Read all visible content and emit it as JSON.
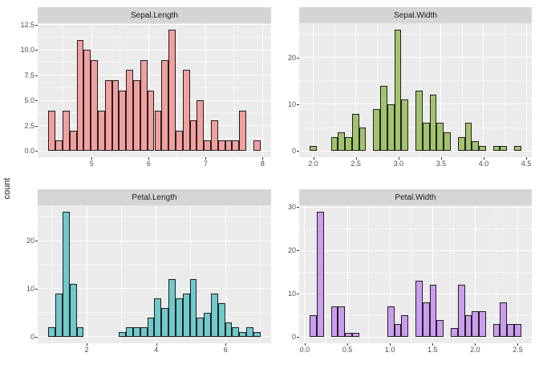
{
  "figure": {
    "ylabel": "count",
    "background": "#ffffff",
    "panel_bg": "#ebebeb",
    "strip_bg": "#d5d5d5",
    "grid_color": "#ffffff",
    "bar_stroke": "#1f1f1f",
    "axis_text_color": "#4d4d4d",
    "strip_text_color": "#1a1a1a"
  },
  "chart_data": [
    {
      "type": "bar",
      "title": "Sepal.Length",
      "fill": "#f1a09e",
      "bin_center_start": 4.3,
      "binwidth": 0.12414,
      "counts": [
        4,
        1,
        4,
        2,
        11,
        10,
        9,
        4,
        7,
        7,
        6,
        8,
        7,
        9,
        6,
        4,
        9,
        12,
        2,
        8,
        3,
        5,
        1,
        3,
        1,
        1,
        1,
        4,
        0,
        1
      ],
      "x_range": [
        4.05,
        8.15
      ],
      "y_range": [
        -0.63,
        12.63
      ],
      "x_ticks": [
        {
          "v": 5,
          "l": "5"
        },
        {
          "v": 6,
          "l": "6"
        },
        {
          "v": 7,
          "l": "7"
        },
        {
          "v": 8,
          "l": "8"
        }
      ],
      "x_minor": [
        4.5,
        5.5,
        6.5,
        7.5
      ],
      "y_ticks": [
        {
          "v": 0,
          "l": "0.0"
        },
        {
          "v": 2.5,
          "l": "2.5"
        },
        {
          "v": 5,
          "l": "5.0"
        },
        {
          "v": 7.5,
          "l": "7.5"
        },
        {
          "v": 10,
          "l": "10.0"
        },
        {
          "v": 12.5,
          "l": "12.5"
        }
      ],
      "y_minor": [
        1.25,
        3.75,
        6.25,
        8.75,
        11.25
      ]
    },
    {
      "type": "bar",
      "title": "Sepal.Width",
      "fill": "#a3c46e",
      "bin_center_start": 2.0,
      "binwidth": 0.082759,
      "counts": [
        1,
        0,
        0,
        3,
        4,
        3,
        8,
        5,
        0,
        9,
        14,
        10,
        26,
        11,
        0,
        13,
        6,
        12,
        6,
        4,
        0,
        3,
        6,
        2,
        1,
        0,
        1,
        1,
        0,
        1
      ],
      "x_range": [
        1.835,
        4.565
      ],
      "y_range": [
        -1.36,
        27.36
      ],
      "x_ticks": [
        {
          "v": 2.0,
          "l": "2.0"
        },
        {
          "v": 2.5,
          "l": "2.5"
        },
        {
          "v": 3.0,
          "l": "3.0"
        },
        {
          "v": 3.5,
          "l": "3.5"
        },
        {
          "v": 4.0,
          "l": "4.0"
        },
        {
          "v": 4.5,
          "l": "4.5"
        }
      ],
      "x_minor": [
        2.25,
        2.75,
        3.25,
        3.75,
        4.25
      ],
      "y_ticks": [
        {
          "v": 0,
          "l": "0"
        },
        {
          "v": 10,
          "l": "10"
        },
        {
          "v": 20,
          "l": "20"
        }
      ],
      "y_minor": [
        5,
        15,
        25
      ]
    },
    {
      "type": "bar",
      "title": "Petal.Length",
      "fill": "#70c9cc",
      "bin_center_start": 1.0,
      "binwidth": 0.203448,
      "counts": [
        2,
        9,
        26,
        11,
        2,
        0,
        0,
        0,
        0,
        0,
        1,
        2,
        2,
        2,
        4,
        8,
        6,
        12,
        8,
        9,
        12,
        4,
        5,
        9,
        7,
        3,
        2,
        1,
        2,
        1
      ],
      "x_range": [
        0.59,
        7.31
      ],
      "y_range": [
        -1.36,
        27.36
      ],
      "x_ticks": [
        {
          "v": 2,
          "l": "2"
        },
        {
          "v": 4,
          "l": "4"
        },
        {
          "v": 6,
          "l": "6"
        }
      ],
      "x_minor": [
        1,
        3,
        5,
        7
      ],
      "y_ticks": [
        {
          "v": 0,
          "l": "0"
        },
        {
          "v": 10,
          "l": "10"
        },
        {
          "v": 20,
          "l": "20"
        }
      ],
      "y_minor": [
        5,
        15,
        25
      ]
    },
    {
      "type": "bar",
      "title": "Petal.Width",
      "fill": "#cb9def",
      "bin_center_start": 0.1,
      "binwidth": 0.082759,
      "counts": [
        5,
        29,
        0,
        7,
        7,
        1,
        1,
        0,
        0,
        0,
        0,
        7,
        3,
        5,
        0,
        13,
        8,
        12,
        4,
        0,
        2,
        12,
        5,
        6,
        6,
        0,
        3,
        8,
        3,
        3
      ],
      "x_range": [
        -0.065,
        2.665
      ],
      "y_range": [
        -1.45,
        30.45
      ],
      "x_ticks": [
        {
          "v": 0.0,
          "l": "0.0"
        },
        {
          "v": 0.5,
          "l": "0.5"
        },
        {
          "v": 1.0,
          "l": "1.0"
        },
        {
          "v": 1.5,
          "l": "1.5"
        },
        {
          "v": 2.0,
          "l": "2.0"
        },
        {
          "v": 2.5,
          "l": "2.5"
        }
      ],
      "x_minor": [
        0.25,
        0.75,
        1.25,
        1.75,
        2.25
      ],
      "y_ticks": [
        {
          "v": 0,
          "l": "0"
        },
        {
          "v": 10,
          "l": "10"
        },
        {
          "v": 20,
          "l": "20"
        },
        {
          "v": 30,
          "l": "30"
        }
      ],
      "y_minor": [
        5,
        15,
        25
      ]
    }
  ]
}
